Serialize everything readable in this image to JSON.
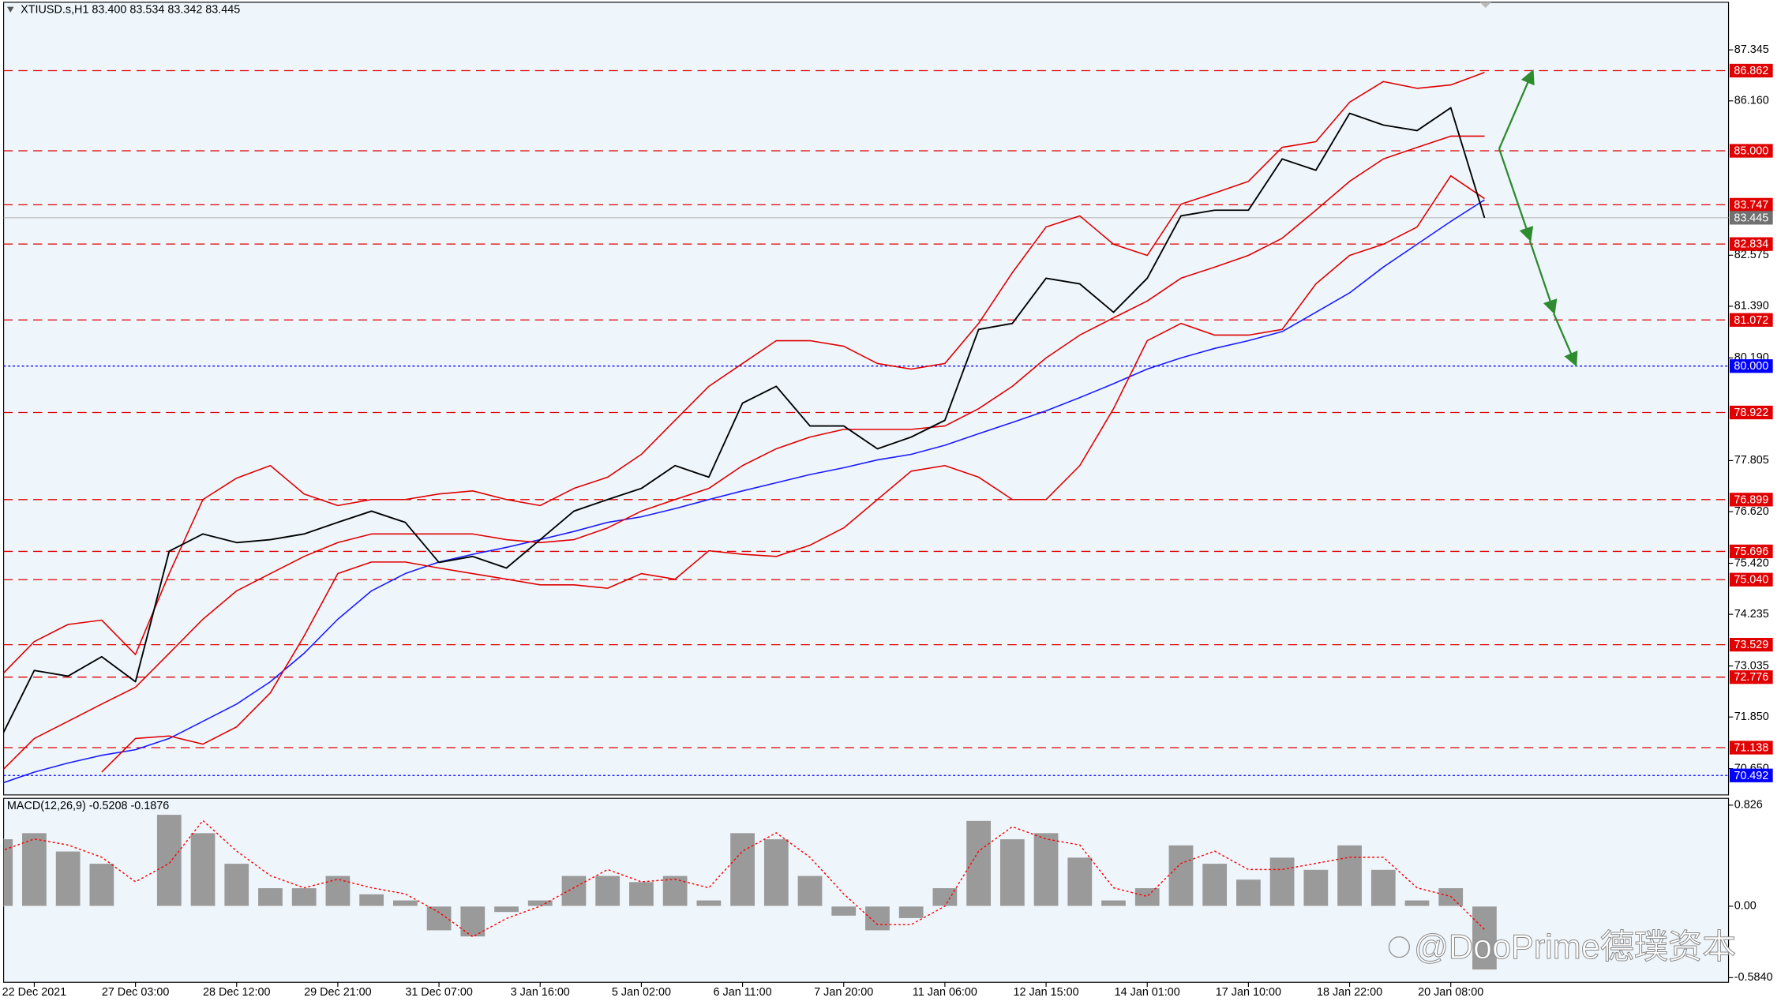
{
  "chart_data": [
    {
      "type": "line",
      "title": "XTIUSD.s,H1  83.400 83.534 83.342 83.445",
      "categories": [
        null,
        "22 Dec 2021",
        null,
        null,
        "27 Dec 03:00",
        null,
        null,
        "28 Dec 12:00",
        null,
        null,
        "29 Dec 21:00",
        null,
        null,
        "31 Dec 07:00",
        null,
        null,
        "3 Jan 16:00",
        null,
        null,
        "5 Jan 02:00",
        null,
        null,
        "6 Jan 11:00",
        null,
        null,
        "7 Jan 20:00",
        null,
        null,
        "11 Jan 06:00",
        null,
        null,
        "12 Jan 15:00",
        null,
        null,
        "14 Jan 01:00",
        null,
        null,
        "17 Jan 10:00",
        null,
        null,
        "18 Jan 22:00",
        null,
        null,
        "20 Jan 08:00",
        null
      ],
      "series": [
        {
          "color": "#1a1aff",
          "values": [
            70.3,
            70.57,
            70.78,
            70.96,
            71.09,
            71.35,
            71.75,
            72.15,
            72.67,
            73.33,
            74.12,
            74.78,
            75.18,
            75.45,
            75.63,
            75.79,
            75.97,
            76.16,
            76.37,
            76.5,
            76.69,
            76.9,
            77.1,
            77.29,
            77.48,
            77.64,
            77.82,
            77.95,
            78.16,
            78.43,
            78.69,
            78.96,
            79.27,
            79.59,
            79.93,
            80.19,
            80.41,
            80.59,
            80.8,
            81.25,
            81.7,
            82.3,
            82.83,
            83.36,
            83.86
          ]
        },
        {
          "color": "#e00000",
          "values": [
            72.8,
            73.6,
            74.0,
            74.1,
            73.3,
            75.18,
            76.9,
            77.4,
            77.69,
            77.03,
            76.76,
            76.9,
            76.9,
            77.03,
            77.1,
            76.9,
            76.76,
            77.16,
            77.42,
            77.95,
            78.74,
            79.53,
            80.06,
            80.59,
            80.59,
            80.46,
            80.06,
            79.93,
            80.06,
            80.99,
            82.17,
            83.23,
            83.49,
            82.83,
            82.57,
            83.76,
            84.02,
            84.29,
            85.08,
            85.21,
            86.13,
            86.61,
            86.45,
            86.53,
            86.82
          ]
        },
        {
          "color": "#e00000",
          "values": [
            70.57,
            71.35,
            71.75,
            72.15,
            72.54,
            73.33,
            74.12,
            74.78,
            75.18,
            75.58,
            75.9,
            76.1,
            76.1,
            76.1,
            76.1,
            75.97,
            75.9,
            75.97,
            76.24,
            76.63,
            76.9,
            77.16,
            77.69,
            78.08,
            78.35,
            78.53,
            78.53,
            78.53,
            78.61,
            79.01,
            79.53,
            80.19,
            80.72,
            81.12,
            81.51,
            82.04,
            82.3,
            82.57,
            82.97,
            83.62,
            84.29,
            84.81,
            85.08,
            85.34,
            85.34
          ]
        },
        {
          "color": "#e00000",
          "values": [
            null,
            null,
            null,
            70.57,
            71.35,
            71.41,
            71.22,
            71.62,
            72.41,
            73.73,
            75.18,
            75.45,
            75.45,
            75.31,
            75.18,
            75.05,
            74.92,
            74.92,
            74.84,
            75.18,
            75.05,
            75.71,
            75.63,
            75.58,
            75.84,
            76.24,
            76.9,
            77.56,
            77.69,
            77.42,
            76.9,
            76.9,
            77.69,
            79.01,
            80.59,
            80.99,
            80.72,
            80.72,
            80.85,
            81.91,
            82.57,
            82.83,
            83.23,
            84.42,
            83.89
          ]
        },
        {
          "color": "#000000",
          "values": [
            71.35,
            72.93,
            72.8,
            73.25,
            72.67,
            75.7,
            76.1,
            75.9,
            75.97,
            76.1,
            76.37,
            76.63,
            76.37,
            75.44,
            75.58,
            75.31,
            75.97,
            76.63,
            76.9,
            77.16,
            77.69,
            77.42,
            79.14,
            79.53,
            78.61,
            78.61,
            78.08,
            78.35,
            78.74,
            80.85,
            80.99,
            82.04,
            81.91,
            81.25,
            82.04,
            83.49,
            83.62,
            83.62,
            84.81,
            84.55,
            85.87,
            85.6,
            85.47,
            86.0,
            83.445
          ]
        }
      ],
      "levels": [
        {
          "color": "#e00000",
          "values": [
            86.862,
            {
              "value": 85,
              "label": "85.000"
            },
            83.747,
            82.834,
            81.072,
            78.922,
            76.899,
            75.696,
            {
              "value": 75.04,
              "label": "75.040"
            },
            73.529,
            72.776,
            71.138
          ]
        },
        {
          "color": "#0000ff",
          "values": [
            {
              "value": 80,
              "label": "80.000"
            },
            70.492
          ]
        }
      ],
      "last_price": 83.445,
      "last_color": "#707070",
      "ylim": [
        70.04,
        88.45
      ],
      "yticks": [
        87.345,
        {
          "value": 86.16,
          "label": "86.160"
        },
        82.575,
        {
          "value": 81.39,
          "label": "81.390"
        },
        {
          "value": 80.19,
          "label": "80.190"
        },
        77.805,
        {
          "value": 76.62,
          "label": "76.620"
        },
        {
          "value": 75.42,
          "label": "75.420"
        },
        74.235,
        73.035,
        {
          "value": 71.85,
          "label": "71.850"
        },
        {
          "value": 70.65,
          "label": "70.650"
        }
      ],
      "grid": false
    },
    {
      "type": "bar",
      "title": "MACD(12,26,9) -0.5208 -0.1876",
      "color": "#9a9a9a",
      "values": [
        0.55,
        0.6,
        0.45,
        0.35,
        0.0,
        0.75,
        0.6,
        0.35,
        0.15,
        0.15,
        0.25,
        0.1,
        0.05,
        -0.2,
        -0.25,
        -0.05,
        0.05,
        0.25,
        0.25,
        0.2,
        0.25,
        0.05,
        0.6,
        0.55,
        0.25,
        -0.08,
        -0.2,
        -0.1,
        0.15,
        0.7,
        0.55,
        0.6,
        0.4,
        0.05,
        0.15,
        0.5,
        0.35,
        0.22,
        0.4,
        0.3,
        0.5,
        0.3,
        0.05,
        0.15,
        -0.52
      ],
      "signal": {
        "color": "#ff0000",
        "values": [
          0.45,
          0.55,
          0.5,
          0.4,
          0.2,
          0.35,
          0.7,
          0.45,
          0.25,
          0.15,
          0.22,
          0.15,
          0.1,
          -0.05,
          -0.25,
          -0.1,
          0.0,
          0.15,
          0.3,
          0.2,
          0.22,
          0.15,
          0.45,
          0.6,
          0.4,
          0.1,
          -0.15,
          -0.15,
          0.0,
          0.45,
          0.65,
          0.55,
          0.5,
          0.15,
          0.08,
          0.35,
          0.45,
          0.3,
          0.3,
          0.35,
          0.4,
          0.4,
          0.15,
          0.08,
          -0.19
        ]
      },
      "ylim": [
        -0.622,
        0.882
      ],
      "yticks": [
        0.826,
        {
          "value": 0,
          "label": "0.00"
        },
        {
          "value": -0.584,
          "label": "-0.5840"
        }
      ],
      "watermark": "@DooPrime德璞资本"
    }
  ]
}
